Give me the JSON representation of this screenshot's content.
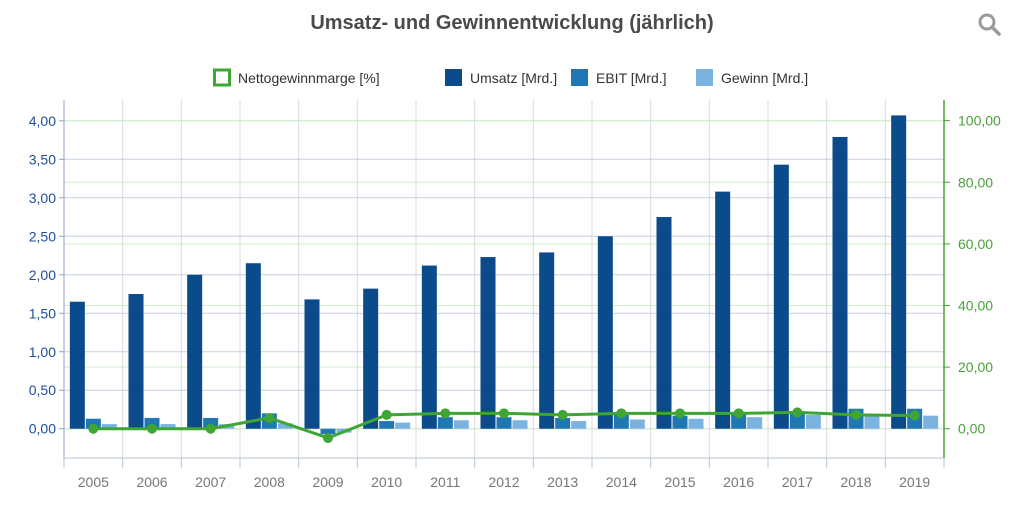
{
  "chart_data": {
    "type": "bar",
    "title": "Umsatz- und Gewinnentwicklung (jährlich)",
    "categories": [
      "2005",
      "2006",
      "2007",
      "2008",
      "2009",
      "2010",
      "2011",
      "2012",
      "2013",
      "2014",
      "2015",
      "2016",
      "2017",
      "2018",
      "2019"
    ],
    "series": [
      {
        "name": "Nettogewinnmarge [%]",
        "type": "line",
        "axis": "right",
        "color": "#3fa535",
        "values": [
          0,
          0,
          0,
          3.5,
          -3,
          4.5,
          5,
          5,
          4.5,
          5,
          5,
          5,
          5.3,
          4.5,
          4.3
        ]
      },
      {
        "name": "Umsatz [Mrd.]",
        "type": "bar",
        "axis": "left",
        "color": "#0b4a8b",
        "values": [
          1.65,
          1.75,
          2.0,
          2.15,
          1.68,
          1.82,
          2.12,
          2.23,
          2.29,
          2.5,
          2.75,
          3.08,
          3.43,
          3.79,
          4.07
        ]
      },
      {
        "name": "EBIT [Mrd.]",
        "type": "bar",
        "axis": "left",
        "color": "#1f77b4",
        "values": [
          0.13,
          0.14,
          0.14,
          0.2,
          -0.07,
          0.1,
          0.15,
          0.15,
          0.14,
          0.18,
          0.17,
          0.19,
          0.23,
          0.26,
          0.26
        ]
      },
      {
        "name": "Gewinn [Mrd.]",
        "type": "bar",
        "axis": "left",
        "color": "#7ab3e0",
        "values": [
          0.06,
          0.06,
          0.06,
          0.07,
          -0.05,
          0.08,
          0.11,
          0.11,
          0.1,
          0.12,
          0.13,
          0.15,
          0.18,
          0.17,
          0.17
        ]
      }
    ],
    "left_axis": {
      "ticks": [
        "0,00",
        "0,50",
        "1,00",
        "1,50",
        "2,00",
        "2,50",
        "3,00",
        "3,50",
        "4,00"
      ],
      "min": -0.38,
      "max": 4.27
    },
    "right_axis": {
      "ticks": [
        "0,00",
        "20,00",
        "40,00",
        "60,00",
        "80,00",
        "100,00"
      ],
      "min": -9.5,
      "max": 106.7
    },
    "legend_position": "top-center",
    "grid": true
  },
  "icons": {
    "search": "search-icon"
  }
}
